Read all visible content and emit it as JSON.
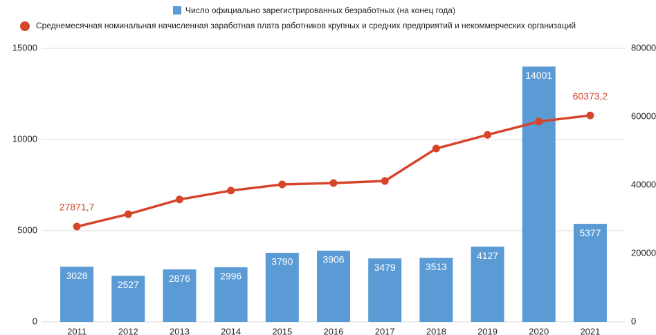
{
  "chart_data": {
    "type": "bar-line",
    "categories": [
      "2011",
      "2012",
      "2013",
      "2014",
      "2015",
      "2016",
      "2017",
      "2018",
      "2019",
      "2020",
      "2021"
    ],
    "series": [
      {
        "name": "Число официально зарегистрированных безработных (на конец года)",
        "type": "bar",
        "color": "#5b9bd5",
        "axis": "y",
        "values": [
          3028,
          2527,
          2876,
          2996,
          3790,
          3906,
          3479,
          3513,
          4127,
          14001,
          5377
        ]
      },
      {
        "name": "Среднемесячная номинальная начисленная заработная плата работников крупных и средних предприятий и некоммерческих организаций",
        "type": "line",
        "color": "#d6452b",
        "axis": "y2",
        "values": [
          27871.7,
          31500,
          35800,
          38400,
          40200,
          40600,
          41200,
          50700,
          54700,
          58600,
          60373.2
        ],
        "value_labels": [
          "27871,7",
          null,
          null,
          null,
          null,
          null,
          null,
          null,
          null,
          null,
          "60373,2"
        ]
      }
    ],
    "ylim": [
      0,
      15000
    ],
    "yticks": [
      0,
      5000,
      10000,
      15000
    ],
    "y2lim": [
      0,
      80000
    ],
    "y2ticks": [
      0,
      20000,
      40000,
      60000,
      80000
    ],
    "grid": true,
    "legend": "top"
  }
}
